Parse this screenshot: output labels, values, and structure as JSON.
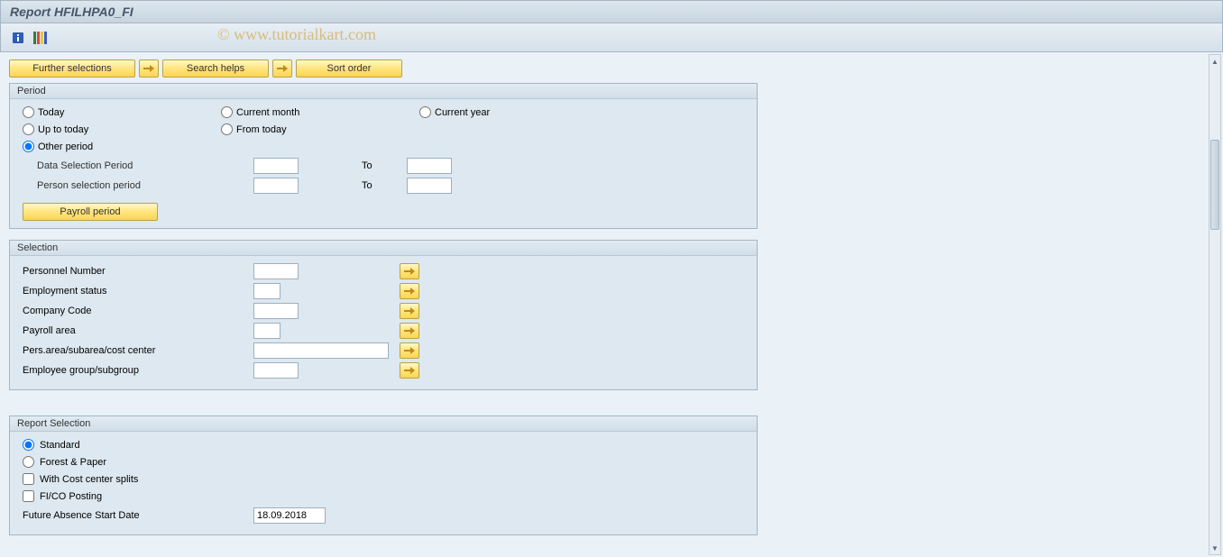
{
  "title": "Report HFILHPA0_FI",
  "watermark": "© www.tutorialkart.com",
  "colors": {
    "header_bg_top": "#dde6ed",
    "header_bg_bottom": "#c7d5e0",
    "toolbar_bg_top": "#e8eff5",
    "toolbar_bg_bottom": "#d5e0ea",
    "content_bg": "#eaf1f7",
    "group_bg": "#dde8f0",
    "group_border": "#a5b5c4",
    "button_bg_top": "#fff9c4",
    "button_bg_mid": "#ffe57f",
    "button_bg_bottom": "#ffd54f",
    "button_border": "#b8a34a",
    "input_border": "#9cb0c2",
    "watermark_color": "#d4a94a"
  },
  "toolbar_buttons": {
    "further_selections": "Further selections",
    "search_helps": "Search helps",
    "sort_order": "Sort order"
  },
  "period": {
    "group_title": "Period",
    "radios": {
      "today": "Today",
      "current_month": "Current month",
      "current_year": "Current year",
      "up_to_today": "Up to today",
      "from_today": "From today",
      "other_period": "Other period"
    },
    "selected": "other_period",
    "data_selection_label": "Data Selection Period",
    "data_selection_from": "",
    "data_selection_to": "",
    "person_selection_label": "Person selection period",
    "person_selection_from": "",
    "person_selection_to": "",
    "to_label": "To",
    "payroll_period_btn": "Payroll period"
  },
  "selection": {
    "group_title": "Selection",
    "rows": [
      {
        "label": "Personnel Number",
        "input_width": "w50",
        "value": ""
      },
      {
        "label": "Employment status",
        "input_width": "w30",
        "value": ""
      },
      {
        "label": "Company Code",
        "input_width": "w50",
        "value": ""
      },
      {
        "label": "Payroll area",
        "input_width": "w30",
        "value": ""
      },
      {
        "label": "Pers.area/subarea/cost center",
        "input_width": "w150",
        "value": ""
      },
      {
        "label": "Employee group/subgroup",
        "input_width": "w50",
        "value": ""
      }
    ]
  },
  "report_selection": {
    "group_title": "Report Selection",
    "radios": {
      "standard": "Standard",
      "forest_paper": "Forest & Paper"
    },
    "selected": "standard",
    "checkboxes": {
      "cost_center_splits": {
        "label": "With Cost center splits",
        "checked": false
      },
      "fico_posting": {
        "label": "FI/CO Posting",
        "checked": false
      }
    },
    "future_absence_label": "Future Absence Start Date",
    "future_absence_value": "18.09.2018"
  }
}
